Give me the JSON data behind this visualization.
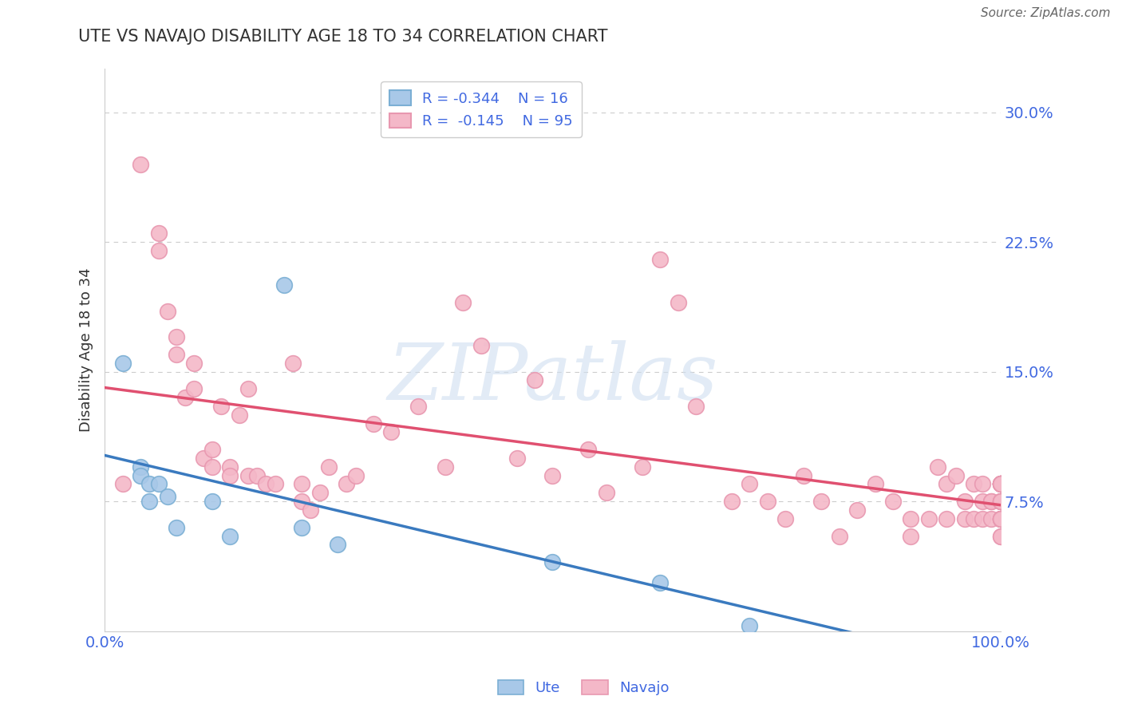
{
  "title": "UTE VS NAVAJO DISABILITY AGE 18 TO 34 CORRELATION CHART",
  "source": "Source: ZipAtlas.com",
  "ylabel": "Disability Age 18 to 34",
  "xlim": [
    0.0,
    1.0
  ],
  "ylim": [
    0.0,
    0.325
  ],
  "yticks": [
    0.075,
    0.15,
    0.225,
    0.3
  ],
  "ytick_labels": [
    "7.5%",
    "15.0%",
    "22.5%",
    "30.0%"
  ],
  "xticks": [
    0.0,
    1.0
  ],
  "xtick_labels": [
    "0.0%",
    "100.0%"
  ],
  "ute_color": "#a8c8e8",
  "ute_edge_color": "#7bafd4",
  "navajo_color": "#f4b8c8",
  "navajo_edge_color": "#e898b0",
  "ute_line_color": "#3a7abf",
  "navajo_line_color": "#e05070",
  "ute_R": -0.344,
  "ute_N": 16,
  "navajo_R": -0.145,
  "navajo_N": 95,
  "label_color": "#4169e1",
  "title_color": "#333333",
  "background_color": "#ffffff",
  "ute_x": [
    0.02,
    0.04,
    0.04,
    0.05,
    0.05,
    0.06,
    0.07,
    0.08,
    0.12,
    0.14,
    0.2,
    0.22,
    0.26,
    0.5,
    0.62,
    0.72
  ],
  "ute_y": [
    0.155,
    0.095,
    0.09,
    0.085,
    0.075,
    0.085,
    0.078,
    0.06,
    0.075,
    0.055,
    0.2,
    0.06,
    0.05,
    0.04,
    0.028,
    0.003
  ],
  "navajo_x": [
    0.02,
    0.04,
    0.06,
    0.06,
    0.07,
    0.08,
    0.08,
    0.09,
    0.1,
    0.1,
    0.11,
    0.12,
    0.12,
    0.13,
    0.14,
    0.14,
    0.15,
    0.16,
    0.16,
    0.17,
    0.18,
    0.19,
    0.21,
    0.22,
    0.22,
    0.23,
    0.24,
    0.25,
    0.27,
    0.28,
    0.3,
    0.32,
    0.35,
    0.38,
    0.4,
    0.42,
    0.46,
    0.48,
    0.5,
    0.54,
    0.56,
    0.6,
    0.62,
    0.64,
    0.66,
    0.7,
    0.72,
    0.74,
    0.76,
    0.78,
    0.8,
    0.82,
    0.84,
    0.86,
    0.88,
    0.9,
    0.9,
    0.92,
    0.93,
    0.94,
    0.94,
    0.95,
    0.96,
    0.96,
    0.97,
    0.97,
    0.98,
    0.98,
    0.98,
    0.99,
    0.99,
    0.99,
    1.0,
    1.0,
    1.0,
    1.0,
    1.0,
    1.0,
    1.0,
    1.0,
    1.0,
    1.0,
    1.0,
    1.0,
    1.0,
    1.0,
    1.0,
    1.0,
    1.0,
    1.0,
    1.0,
    1.0,
    1.0,
    1.0,
    1.0
  ],
  "navajo_y": [
    0.085,
    0.27,
    0.23,
    0.22,
    0.185,
    0.17,
    0.16,
    0.135,
    0.155,
    0.14,
    0.1,
    0.105,
    0.095,
    0.13,
    0.095,
    0.09,
    0.125,
    0.14,
    0.09,
    0.09,
    0.085,
    0.085,
    0.155,
    0.085,
    0.075,
    0.07,
    0.08,
    0.095,
    0.085,
    0.09,
    0.12,
    0.115,
    0.13,
    0.095,
    0.19,
    0.165,
    0.1,
    0.145,
    0.09,
    0.105,
    0.08,
    0.095,
    0.215,
    0.19,
    0.13,
    0.075,
    0.085,
    0.075,
    0.065,
    0.09,
    0.075,
    0.055,
    0.07,
    0.085,
    0.075,
    0.055,
    0.065,
    0.065,
    0.095,
    0.065,
    0.085,
    0.09,
    0.065,
    0.075,
    0.085,
    0.065,
    0.065,
    0.075,
    0.085,
    0.075,
    0.075,
    0.065,
    0.085,
    0.085,
    0.085,
    0.065,
    0.065,
    0.085,
    0.065,
    0.075,
    0.055,
    0.085,
    0.075,
    0.075,
    0.065,
    0.085,
    0.085,
    0.065,
    0.085,
    0.065,
    0.075,
    0.055,
    0.085,
    0.075,
    0.065
  ]
}
